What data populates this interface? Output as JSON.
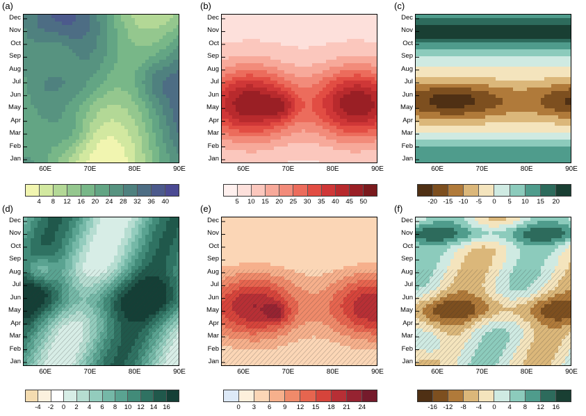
{
  "chart_data": [
    {
      "type": "heatmap",
      "panel_label": "(a)",
      "y_categories": [
        "Jan",
        "Feb",
        "Mar",
        "Apr",
        "May",
        "Jun",
        "Jul",
        "Aug",
        "Sep",
        "Oct",
        "Nov",
        "Dec"
      ],
      "x_ticks": [
        "60E",
        "70E",
        "80E",
        "90E"
      ],
      "xlim": [
        55,
        90
      ],
      "colorbar_ticks": [
        "4",
        "8",
        "12",
        "16",
        "20",
        "24",
        "28",
        "32",
        "36",
        "40"
      ],
      "colors": [
        "#f1f5b0",
        "#d2e8a0",
        "#b3d896",
        "#94c78e",
        "#78b788",
        "#63a584",
        "#579380",
        "#4f817f",
        "#4d6d84",
        "#4c5a8c",
        "#4b4a93"
      ]
    },
    {
      "type": "heatmap",
      "panel_label": "(b)",
      "y_categories": [
        "Jan",
        "Feb",
        "Mar",
        "Apr",
        "May",
        "Jun",
        "Jul",
        "Aug",
        "Sep",
        "Oct",
        "Nov",
        "Dec"
      ],
      "x_ticks": [
        "60E",
        "70E",
        "80E",
        "90E"
      ],
      "xlim": [
        55,
        90
      ],
      "colorbar_ticks": [
        "5",
        "10",
        "15",
        "20",
        "25",
        "30",
        "35",
        "40",
        "45",
        "50"
      ],
      "colors": [
        "#fff0ee",
        "#fde0db",
        "#fbc7bd",
        "#f7a99a",
        "#f28b7a",
        "#ec6c5c",
        "#e24d43",
        "#cf3737",
        "#b82a2d",
        "#9a1f25",
        "#7a1a1d"
      ]
    },
    {
      "type": "heatmap",
      "panel_label": "(c)",
      "y_categories": [
        "Jan",
        "Feb",
        "Mar",
        "Apr",
        "May",
        "Jun",
        "Jul",
        "Aug",
        "Sep",
        "Oct",
        "Nov",
        "Dec"
      ],
      "x_ticks": [
        "60E",
        "70E",
        "80E",
        "90E"
      ],
      "xlim": [
        55,
        90
      ],
      "colorbar_ticks": [
        "-20",
        "-15",
        "-10",
        "-5",
        "0",
        "5",
        "10",
        "15",
        "20"
      ],
      "colors": [
        "#4f3014",
        "#7d4f1f",
        "#b07a3a",
        "#dbb77a",
        "#f4e4bd",
        "#cfeae2",
        "#8ccbbc",
        "#4f9c8c",
        "#2d6b5c",
        "#193f33"
      ]
    },
    {
      "type": "heatmap",
      "panel_label": "(d)",
      "y_categories": [
        "Jan",
        "Feb",
        "Mar",
        "Apr",
        "May",
        "Jun",
        "Jul",
        "Aug",
        "Sep",
        "Oct",
        "Nov",
        "Dec"
      ],
      "x_ticks": [
        "60E",
        "70E",
        "80E",
        "90E"
      ],
      "xlim": [
        55,
        90
      ],
      "colorbar_ticks": [
        "-4",
        "-2",
        "0",
        "2",
        "4",
        "6",
        "8",
        "10",
        "12",
        "14",
        "16"
      ],
      "colors": [
        "#f4dcb0",
        "#fbf1de",
        "#ffffff",
        "#d7ede6",
        "#b6ddd1",
        "#93ccbd",
        "#75b8a7",
        "#5aa391",
        "#428b79",
        "#2f7262",
        "#20584b",
        "#143f36"
      ]
    },
    {
      "type": "heatmap",
      "panel_label": "(e)",
      "y_categories": [
        "Jan",
        "Feb",
        "Mar",
        "Apr",
        "May",
        "Jun",
        "Jul",
        "Aug",
        "Sep",
        "Oct",
        "Nov",
        "Dec"
      ],
      "x_ticks": [
        "60E",
        "70E",
        "80E",
        "90E"
      ],
      "xlim": [
        55,
        90
      ],
      "colorbar_ticks": [
        "0",
        "3",
        "6",
        "9",
        "12",
        "15",
        "18",
        "21",
        "24"
      ],
      "colors": [
        "#dde9f7",
        "#fdf0dc",
        "#fbd6b6",
        "#f6b08c",
        "#ef8a6a",
        "#e6654f",
        "#d6443b",
        "#b72f35",
        "#962331",
        "#751a2b"
      ]
    },
    {
      "type": "heatmap",
      "panel_label": "(f)",
      "y_categories": [
        "Jan",
        "Feb",
        "Mar",
        "Apr",
        "May",
        "Jun",
        "Jul",
        "Aug",
        "Sep",
        "Oct",
        "Nov",
        "Dec"
      ],
      "x_ticks": [
        "60E",
        "70E",
        "80E",
        "90E"
      ],
      "xlim": [
        55,
        90
      ],
      "colorbar_ticks": [
        "-16",
        "-12",
        "-8",
        "-4",
        "0",
        "4",
        "8",
        "12",
        "16"
      ],
      "colors": [
        "#4f3014",
        "#7d4f1f",
        "#b07a3a",
        "#dbb77a",
        "#f4e4bd",
        "#cfeae2",
        "#8ccbbc",
        "#4f9c8c",
        "#2d6b5c",
        "#193f33"
      ]
    }
  ]
}
